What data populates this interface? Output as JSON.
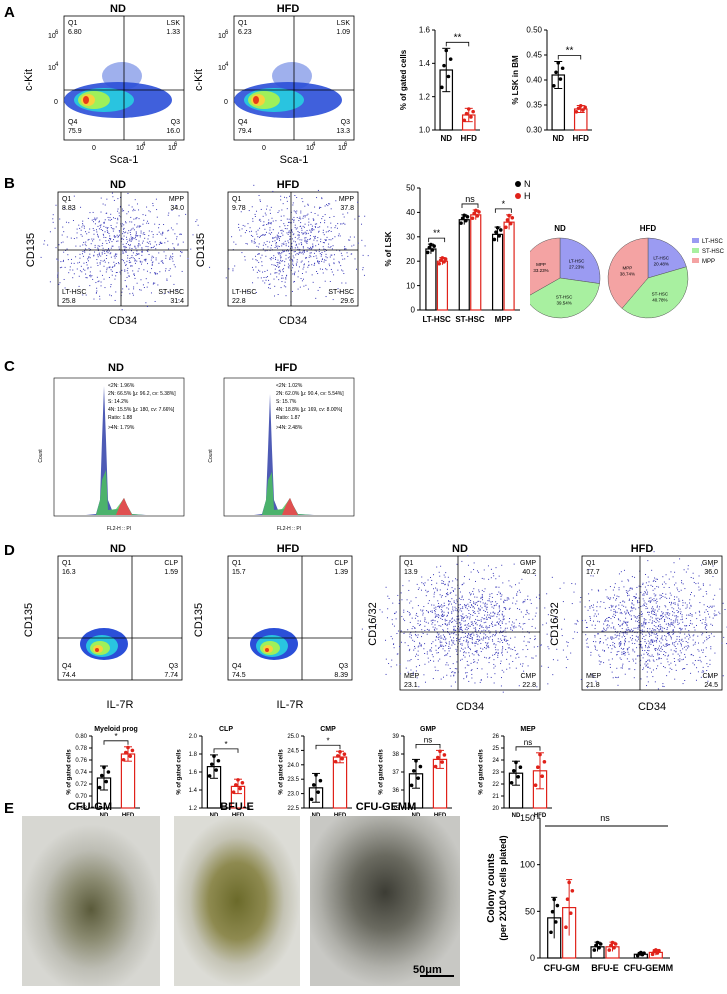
{
  "panels": {
    "A": "A",
    "B": "B",
    "C": "C",
    "D": "D",
    "E": "E"
  },
  "flowA": [
    {
      "title": "ND",
      "ylabel": "c-Kit",
      "xlabel": "Sca-1",
      "q1": "Q1",
      "q1v": "6.80",
      "q2": "LSK",
      "q2v": "1.33",
      "q3": "Q3",
      "q3v": "16.0",
      "q4": "Q4",
      "q4v": "75.9",
      "xt": [
        "0",
        "10",
        "4",
        "10",
        "6"
      ],
      "yt": [
        "10",
        "6",
        "10",
        "4",
        "0"
      ]
    },
    {
      "title": "HFD",
      "ylabel": "c-Kit",
      "xlabel": "Sca-1",
      "q1": "Q1",
      "q1v": "6.23",
      "q2": "LSK",
      "q2v": "1.09",
      "q3": "Q3",
      "q3v": "13.3",
      "q4": "Q4",
      "q4v": "79.4",
      "xt": [
        "0",
        "10",
        "4",
        "10",
        "6"
      ],
      "yt": [
        "10",
        "6",
        "10",
        "4",
        "0"
      ]
    }
  ],
  "flowB": [
    {
      "title": "ND",
      "ylabel": "CD135",
      "xlabel": "CD34",
      "q1": "Q1",
      "q1v": "8.83",
      "q2": "MPP",
      "q2v": "34.0",
      "q3": "ST-HSC",
      "q3v": "31.4",
      "q4": "LT-HSC",
      "q4v": "25.8"
    },
    {
      "title": "HFD",
      "ylabel": "CD135",
      "xlabel": "CD34",
      "q1": "Q1",
      "q1v": "9.78",
      "q2": "MPP",
      "q2v": "37.8",
      "q3": "ST-HSC",
      "q3v": "29.6",
      "q4": "LT-HSC",
      "q4v": "22.8"
    }
  ],
  "flowD": [
    {
      "title": "ND",
      "ylabel": "CD135",
      "xlabel": "IL-7R",
      "q1": "Q1",
      "q1v": "16.3",
      "q2": "CLP",
      "q2v": "1.59",
      "q3": "Q3",
      "q3v": "7.74",
      "q4": "Q4",
      "q4v": "74.4"
    },
    {
      "title": "HFD",
      "ylabel": "CD135",
      "xlabel": "IL-7R",
      "q1": "Q1",
      "q1v": "15.7",
      "q2": "CLP",
      "q2v": "1.39",
      "q3": "Q3",
      "q3v": "8.39",
      "q4": "Q4",
      "q4v": "74.5"
    },
    {
      "title": "ND",
      "ylabel": "CD16/32",
      "xlabel": "CD34",
      "q1": "Q1",
      "q1v": "13.9",
      "q2": "GMP",
      "q2v": "40.2",
      "q3": "CMP",
      "q3v": "22.8",
      "q4": "MEP",
      "q4v": "23.1"
    },
    {
      "title": "HFD",
      "ylabel": "CD16/32",
      "xlabel": "CD34",
      "q1": "Q1",
      "q1v": "17.7",
      "q2": "GMP",
      "q2v": "36.0",
      "q3": "CMP",
      "q3v": "24.5",
      "q4": "MEP",
      "q4v": "21.8"
    }
  ],
  "histC": [
    {
      "title": "ND",
      "ylabel": "Count",
      "xlabel": "FL2-H :: PI",
      "lines": [
        "<2N: 1.96%",
        "2N: 66.5%  [μ: 96.2, cv: 5.38%]",
        "S: 14.2%",
        "4N: 15.5%  [μ: 180, cv: 7.66%]",
        "Ratio: 1.88",
        ">4N: 1.79%"
      ]
    },
    {
      "title": "HFD",
      "ylabel": "Count",
      "xlabel": "FL2-H :: PI",
      "lines": [
        "<2N: 1.02%",
        "2N: 62.0%  [μ: 90.4, cv: 5.54%]",
        "S: 15.7%",
        "4N: 18.8%  [μ: 169, cv: 8.00%]",
        "Ratio: 1.87",
        ">4N: 2.48%"
      ]
    }
  ],
  "pies": {
    "legend": [
      "LT-HSC",
      "ST-HSC",
      "MPP"
    ],
    "colors": [
      "#9b9bf2",
      "#a8f0a0",
      "#f4a3a3"
    ],
    "charts": [
      {
        "title": "ND",
        "labels": [
          "LT-HSC\n27.23%",
          "ST-HSC\n39.54%",
          "MPP\n33.23%"
        ]
      },
      {
        "title": "HFD",
        "labels": [
          "LT-HSC\n20.48%",
          "ST-HSC\n40.78%",
          "MPP\n38.74%"
        ]
      }
    ]
  },
  "stats": {
    "double": "**",
    "single": "*",
    "ns": "ns",
    "scale": "50μm"
  },
  "photos": [
    "CFU-GM",
    "BFU-E",
    "CFU-GEMM"
  ],
  "chart_data": [
    {
      "type": "bar",
      "id": "A_gated",
      "categories": [
        "ND",
        "HFD"
      ],
      "values": [
        1.36,
        1.09
      ],
      "errors": [
        0.13,
        0.04
      ],
      "ylabel": "% of gated cells",
      "ylim": [
        1.0,
        1.6
      ],
      "yticks": [
        "1.0",
        "1.2",
        "1.4",
        "1.6"
      ],
      "sig": "**"
    },
    {
      "type": "bar",
      "id": "A_lsk",
      "categories": [
        "ND",
        "HFD"
      ],
      "values": [
        0.41,
        0.342
      ],
      "errors": [
        0.027,
        0.007
      ],
      "ylabel": "% LSK in BM",
      "ylim": [
        0.3,
        0.5
      ],
      "yticks": [
        "0.30",
        "0.35",
        "0.40",
        "0.45",
        "0.50"
      ],
      "sig": "**"
    },
    {
      "type": "bar",
      "id": "B_lsk",
      "categories": [
        "LT-HSC",
        "ST-HSC",
        "MPP"
      ],
      "series": [
        {
          "name": "ND",
          "values": [
            25,
            37,
            31
          ],
          "errors": [
            2,
            2,
            3
          ]
        },
        {
          "name": "HFD",
          "values": [
            20,
            39,
            36
          ],
          "errors": [
            1.5,
            2,
            3
          ]
        }
      ],
      "ylabel": "% of LSK",
      "ylim": [
        0,
        50
      ],
      "yticks": [
        "0",
        "10",
        "20",
        "30",
        "40",
        "50"
      ],
      "sig": [
        "**",
        "ns",
        "*"
      ]
    },
    {
      "type": "bar",
      "id": "D_myeloid",
      "title": "Myeloid prog",
      "categories": [
        "ND",
        "HFD"
      ],
      "values": [
        0.73,
        0.77
      ],
      "errors": [
        0.02,
        0.012
      ],
      "ylabel": "% of gated cells",
      "ylim": [
        0.68,
        0.8
      ],
      "yticks": [
        "0.68",
        "0.70",
        "0.72",
        "0.74",
        "0.76",
        "0.78",
        "0.80"
      ],
      "sig": "*"
    },
    {
      "type": "bar",
      "id": "D_clp",
      "title": "CLP",
      "categories": [
        "ND",
        "HFD"
      ],
      "values": [
        1.66,
        1.44
      ],
      "errors": [
        0.13,
        0.08
      ],
      "ylabel": "% of gated cells",
      "ylim": [
        1.2,
        2.0
      ],
      "yticks": [
        "1.2",
        "1.4",
        "1.6",
        "1.8",
        "2.0"
      ],
      "sig": "*"
    },
    {
      "type": "bar",
      "id": "D_cmp",
      "title": "CMP",
      "categories": [
        "ND",
        "HFD"
      ],
      "values": [
        23.2,
        24.27
      ],
      "errors": [
        0.5,
        0.2
      ],
      "ylabel": "% of gated cells",
      "ylim": [
        22.5,
        25.0
      ],
      "yticks": [
        "22.5",
        "23.0",
        "23.5",
        "24.0",
        "24.5",
        "25.0"
      ],
      "sig": "*"
    },
    {
      "type": "bar",
      "id": "D_gmp",
      "title": "GMP",
      "categories": [
        "ND",
        "HFD"
      ],
      "values": [
        36.9,
        37.7
      ],
      "errors": [
        0.8,
        0.5
      ],
      "ylabel": "% of gated cells",
      "ylim": [
        35,
        39
      ],
      "yticks": [
        "35",
        "36",
        "37",
        "38",
        "39"
      ],
      "sig": "ns"
    },
    {
      "type": "bar",
      "id": "D_mep",
      "title": "MEP",
      "categories": [
        "ND",
        "HFD"
      ],
      "values": [
        22.9,
        23.1
      ],
      "errors": [
        1.0,
        1.5
      ],
      "ylabel": "% of gated cells",
      "ylim": [
        20,
        26
      ],
      "yticks": [
        "20",
        "21",
        "22",
        "23",
        "24",
        "25",
        "26"
      ],
      "sig": "ns"
    },
    {
      "type": "bar",
      "id": "E_colony",
      "categories": [
        "CFU-GM",
        "BFU-E",
        "CFU-GEMM"
      ],
      "series": [
        {
          "name": "ND",
          "values": [
            43,
            12,
            4
          ],
          "errors": [
            22,
            5,
            2
          ]
        },
        {
          "name": "HFD",
          "values": [
            54,
            12,
            6
          ],
          "errors": [
            30,
            5,
            3
          ]
        }
      ],
      "ylabel": "Colony counts (per 2X10^4 cells plated)",
      "ylim": [
        0,
        150
      ],
      "yticks": [
        "0",
        "50",
        "100",
        "150"
      ],
      "sig": "ns"
    }
  ]
}
